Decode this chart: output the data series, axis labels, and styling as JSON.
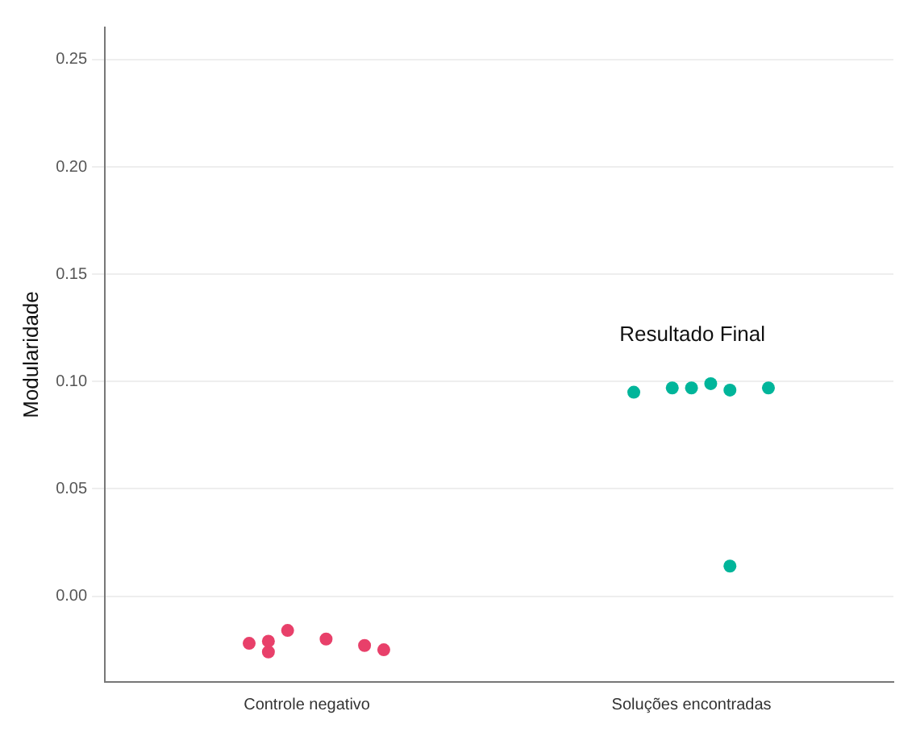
{
  "chart_data": {
    "type": "scatter",
    "ylabel": "Modularidade",
    "categories": [
      null,
      null,
      null,
      null,
      null,
      null,
      null,
      null,
      null,
      null,
      "Controle negativo",
      null,
      null,
      null,
      null,
      null,
      null,
      null,
      null,
      null,
      null,
      null,
      null,
      null,
      null,
      null,
      null,
      null,
      null,
      null,
      "Soluções encontradas",
      null,
      null,
      null,
      null,
      null,
      null,
      null,
      null,
      null,
      null
    ],
    "series": [
      {
        "color": "#e8406a",
        "values": [
          null,
          null,
          null,
          null,
          null,
          null,
          null,
          -0.022,
          -0.021,
          -0.016,
          null,
          -0.02,
          null,
          -0.023,
          -0.025,
          null,
          null,
          null,
          null,
          null,
          null,
          null,
          null,
          null,
          null,
          null,
          null,
          null,
          null,
          null,
          null,
          null,
          null,
          null,
          null,
          null,
          null,
          null,
          null,
          null,
          null
        ]
      },
      {
        "color": "#e8406a",
        "values": [
          null,
          null,
          null,
          null,
          null,
          null,
          null,
          null,
          -0.026,
          null,
          null,
          null,
          null,
          null,
          null,
          null,
          null,
          null,
          null,
          null,
          null,
          null,
          null,
          null,
          null,
          null,
          null,
          null,
          null,
          null,
          null,
          null,
          null,
          null,
          null,
          null,
          null,
          null,
          null,
          null,
          null
        ]
      },
      {
        "color": "#00b59a",
        "values": [
          null,
          null,
          null,
          null,
          null,
          null,
          null,
          null,
          null,
          null,
          null,
          null,
          null,
          null,
          null,
          null,
          null,
          null,
          null,
          null,
          null,
          null,
          null,
          null,
          null,
          null,
          null,
          0.095,
          null,
          0.097,
          0.097,
          0.099,
          0.014,
          null,
          0.097,
          null,
          null,
          null,
          null,
          null,
          null
        ]
      },
      {
        "color": "#00b59a",
        "values": [
          null,
          null,
          null,
          null,
          null,
          null,
          null,
          null,
          null,
          null,
          null,
          null,
          null,
          null,
          null,
          null,
          null,
          null,
          null,
          null,
          null,
          null,
          null,
          null,
          null,
          null,
          null,
          null,
          null,
          null,
          null,
          null,
          0.096,
          null,
          null,
          null,
          null,
          null,
          null,
          null,
          null
        ]
      }
    ],
    "annotations": [
      "Resultado Final"
    ],
    "ylim": [
      -0.04,
      0.265
    ],
    "yticks": [
      {
        "value": 0,
        "label": "0.00"
      },
      {
        "value": 0.05,
        "label": "0.05"
      },
      {
        "value": 0.1,
        "label": "0.10"
      },
      {
        "value": 0.15,
        "label": "0.15"
      },
      {
        "value": 0.2,
        "label": "0.20"
      },
      {
        "value": 0.25,
        "label": "0.25"
      }
    ],
    "grid": "y",
    "marker": "circle",
    "legend": false
  }
}
